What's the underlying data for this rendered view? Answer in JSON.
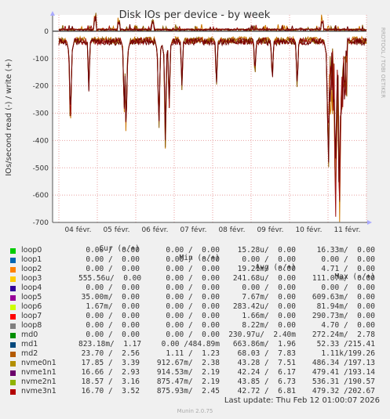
{
  "chart_data": {
    "type": "line",
    "title": "Disk IOs per device - by week",
    "ylabel": "IOs/second read (-) / write (+)",
    "side_label": "RRDTOOL / TOBI OETIKER",
    "ylim": [
      -700,
      60
    ],
    "yticks": [
      0,
      -100,
      -200,
      -300,
      -400,
      -500,
      -600,
      -700
    ],
    "x_categories": [
      "04 févr.",
      "05 févr.",
      "06 févr.",
      "07 févr.",
      "08 févr.",
      "09 févr.",
      "10 févr.",
      "11 févr."
    ],
    "grid": true,
    "series_colors": {
      "nvme0n1": "#cc7700",
      "nvme1n1": "#8b5a00",
      "nvme2n1": "#a01010",
      "nvme3n1": "#6b0000"
    },
    "read_series": {
      "baseline": -20,
      "spikes": [
        {
          "day": 0.3,
          "value": -420
        },
        {
          "day": 0.78,
          "value": -225
        },
        {
          "day": 1.7,
          "value": -320
        },
        {
          "day": 1.75,
          "value": -440
        },
        {
          "day": 2.6,
          "value": -400
        },
        {
          "day": 2.77,
          "value": -470
        },
        {
          "day": 2.87,
          "value": -300
        },
        {
          "day": 3.2,
          "value": -220
        },
        {
          "day": 4.1,
          "value": -225
        },
        {
          "day": 5.1,
          "value": -190
        },
        {
          "day": 5.55,
          "value": -220
        },
        {
          "day": 6.2,
          "value": -230
        },
        {
          "day": 7.0,
          "value": -470
        },
        {
          "day": 7.2,
          "value": -550
        },
        {
          "day": 7.3,
          "value": -600
        }
      ]
    },
    "write_series": {
      "baseline": 3,
      "peaks": [
        {
          "day": 0.95,
          "value": 55
        },
        {
          "day": 1.55,
          "value": 45
        },
        {
          "day": 2.45,
          "value": 40
        },
        {
          "day": 6.85,
          "value": 45
        }
      ]
    }
  },
  "legend": {
    "headers": {
      "cur": "Cur (-/+)",
      "min": "Min (-/+)",
      "avg": "Avg (-/+)",
      "max": "Max (-/+)"
    },
    "rows": [
      {
        "name": "loop0",
        "color": "#00cc00",
        "cur": "0.00 /  0.00",
        "min": "0.00 /  0.00",
        "avg": "15.28u/  0.00",
        "max": "16.33m/  0.00"
      },
      {
        "name": "loop1",
        "color": "#0066b3",
        "cur": "0.00 /  0.00",
        "min": "0.00 /  0.00",
        "avg": "0.00 /  0.00",
        "max": "0.00 /  0.00"
      },
      {
        "name": "loop2",
        "color": "#ff8000",
        "cur": "0.00 /  0.00",
        "min": "0.00 /  0.00",
        "avg": "19.21m/  0.00",
        "max": "4.71 /  0.00"
      },
      {
        "name": "loop3",
        "color": "#ffcc00",
        "cur": "555.56u/  0.00",
        "min": "0.00 /  0.00",
        "avg": "241.68u/  0.00",
        "max": "111.07m/  0.00"
      },
      {
        "name": "loop4",
        "color": "#330099",
        "cur": "0.00 /  0.00",
        "min": "0.00 /  0.00",
        "avg": "0.00 /  0.00",
        "max": "0.00 /  0.00"
      },
      {
        "name": "loop5",
        "color": "#990099",
        "cur": "35.00m/  0.00",
        "min": "0.00 /  0.00",
        "avg": "7.67m/  0.00",
        "max": "609.63m/  0.00"
      },
      {
        "name": "loop6",
        "color": "#ccff00",
        "cur": "1.67m/  0.00",
        "min": "0.00 /  0.00",
        "avg": "283.42u/  0.00",
        "max": "81.94m/  0.00"
      },
      {
        "name": "loop7",
        "color": "#ff0000",
        "cur": "0.00 /  0.00",
        "min": "0.00 /  0.00",
        "avg": "1.66m/  0.00",
        "max": "290.73m/  0.00"
      },
      {
        "name": "loop8",
        "color": "#808080",
        "cur": "0.00 /  0.00",
        "min": "0.00 /  0.00",
        "avg": "8.22m/  0.00",
        "max": "4.70 /  0.00"
      },
      {
        "name": "md0",
        "color": "#008f00",
        "cur": "0.00 /  0.00",
        "min": "0.00 /  0.00",
        "avg": "230.97u/  2.40m",
        "max": "272.24m/  2.78"
      },
      {
        "name": "md1",
        "color": "#00487d",
        "cur": "823.18m/  1.17",
        "min": "0.00 /484.89m",
        "avg": "663.86m/  1.96",
        "max": "52.33 /215.41"
      },
      {
        "name": "md2",
        "color": "#b35a00",
        "cur": "23.70 /  2.56",
        "min": "1.11 /  1.23",
        "avg": "68.03 /  7.83",
        "max": "1.11k/199.26"
      },
      {
        "name": "nvme0n1",
        "color": "#b38f00",
        "cur": "17.85 /  3.39",
        "min": "912.67m/  2.38",
        "avg": "43.28 /  7.51",
        "max": "486.34 /197.13"
      },
      {
        "name": "nvme1n1",
        "color": "#6b006b",
        "cur": "16.66 /  2.93",
        "min": "914.53m/  2.19",
        "avg": "42.24 /  6.17",
        "max": "479.41 /193.14"
      },
      {
        "name": "nvme2n1",
        "color": "#8fb300",
        "cur": "18.57 /  3.16",
        "min": "875.47m/  2.19",
        "avg": "43.85 /  6.73",
        "max": "536.31 /190.57"
      },
      {
        "name": "nvme3n1",
        "color": "#b30000",
        "cur": "16.70 /  3.52",
        "min": "875.93m/  2.45",
        "avg": "42.72 /  6.81",
        "max": "479.32 /202.67"
      }
    ]
  },
  "footer": {
    "last_update": "Last update: Thu Feb 12 01:00:07 2026",
    "version": "Munin 2.0.75"
  }
}
